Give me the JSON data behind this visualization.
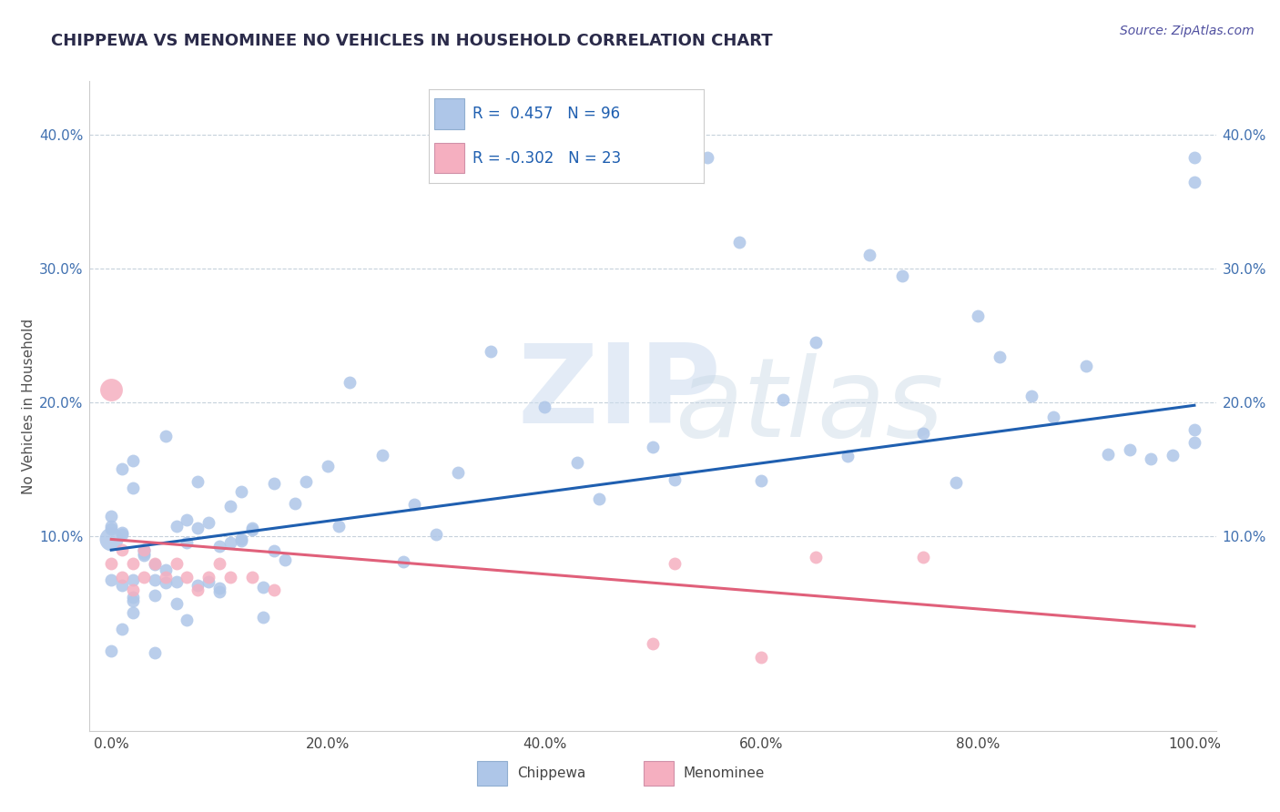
{
  "title": "CHIPPEWA VS MENOMINEE NO VEHICLES IN HOUSEHOLD CORRELATION CHART",
  "source_text": "Source: ZipAtlas.com",
  "ylabel": "No Vehicles in Household",
  "watermark_top": "ZIP",
  "watermark_bot": "atlas",
  "chippewa_R": 0.457,
  "chippewa_N": 96,
  "menominee_R": -0.302,
  "menominee_N": 23,
  "chippewa_color": "#aec6e8",
  "menominee_color": "#f5afc0",
  "chippewa_line_color": "#1f5fb0",
  "menominee_line_color": "#e0607a",
  "background_color": "#ffffff",
  "title_color": "#2b2b4a",
  "legend_text_color": "#1f5fb0",
  "watermark_color_zip": "#c5d8ee",
  "watermark_color_atlas": "#d0dce8",
  "xlim": [
    -0.02,
    1.02
  ],
  "ylim": [
    -0.045,
    0.44
  ],
  "xticks": [
    0.0,
    0.2,
    0.4,
    0.6,
    0.8,
    1.0
  ],
  "yticks": [
    0.1,
    0.2,
    0.3,
    0.4
  ],
  "chip_line_x0": 0.0,
  "chip_line_y0": 0.09,
  "chip_line_x1": 1.0,
  "chip_line_y1": 0.198,
  "men_line_x0": 0.0,
  "men_line_y0": 0.098,
  "men_line_x1": 1.0,
  "men_line_y1": 0.033
}
